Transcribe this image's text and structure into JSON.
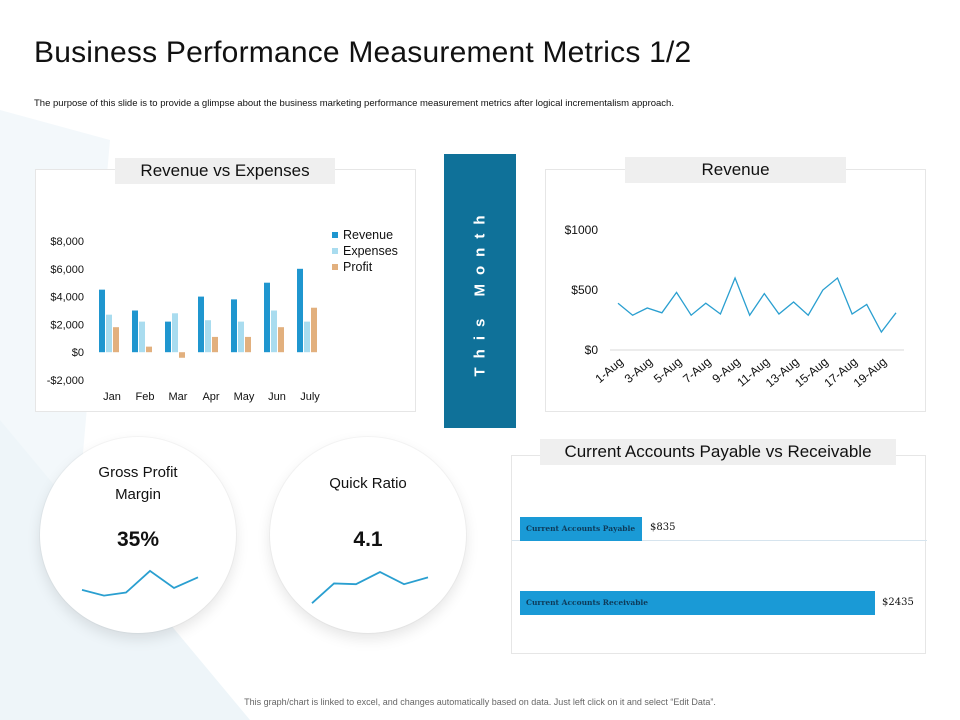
{
  "title": "Business Performance Measurement Metrics 1/2",
  "subtitle": "The purpose of this slide is to provide a glimpse about the business marketing performance measurement metrics after logical incrementalism approach.",
  "footer": "This graph/chart is linked to excel, and changes automatically based on data. Just left click on it and select “Edit Data”.",
  "colors": {
    "accent": "#0f7199",
    "revenue": "#1f96cf",
    "expenses": "#a9dcef",
    "profit": "#e2b07e",
    "line": "#2a9fd0",
    "bar_blue": "#1a9ad6"
  },
  "month_label": "This Month",
  "chart_data": [
    {
      "type": "bar",
      "title": "Revenue vs Expenses",
      "categories": [
        "Jan",
        "Feb",
        "Mar",
        "Apr",
        "May",
        "Jun",
        "July"
      ],
      "series": [
        {
          "name": "Revenue",
          "values": [
            4500,
            3000,
            2200,
            4000,
            3800,
            5000,
            6000
          ]
        },
        {
          "name": "Expenses",
          "values": [
            2700,
            2200,
            2800,
            2300,
            2200,
            3000,
            2200
          ]
        },
        {
          "name": "Profit",
          "values": [
            1800,
            400,
            -400,
            1100,
            1100,
            1800,
            3200
          ]
        }
      ],
      "ylim": [
        -2000,
        8000
      ],
      "yticks": [
        -2000,
        0,
        2000,
        4000,
        6000,
        8000
      ],
      "ytick_labels": [
        "-$2,000",
        "$0",
        "$2,000",
        "$4,000",
        "$6,000",
        "$8,000"
      ],
      "legend": "right",
      "grid": false
    },
    {
      "type": "line",
      "title": "Revenue",
      "x": [
        "1-Aug",
        "2-Aug",
        "3-Aug",
        "4-Aug",
        "5-Aug",
        "6-Aug",
        "7-Aug",
        "8-Aug",
        "9-Aug",
        "10-Aug",
        "11-Aug",
        "12-Aug",
        "13-Aug",
        "14-Aug",
        "15-Aug",
        "16-Aug",
        "17-Aug",
        "18-Aug",
        "19-Aug",
        "20-Aug"
      ],
      "xtick_labels": [
        "1-Aug",
        "3-Aug",
        "5-Aug",
        "7-Aug",
        "9-Aug",
        "11-Aug",
        "13-Aug",
        "15-Aug",
        "17-Aug",
        "19-Aug"
      ],
      "series": [
        {
          "values": [
            390,
            290,
            350,
            310,
            480,
            290,
            390,
            300,
            600,
            290,
            470,
            300,
            400,
            290,
            500,
            600,
            300,
            380,
            150,
            310
          ]
        }
      ],
      "ylim": [
        0,
        1000
      ],
      "yticks": [
        0,
        500,
        1000
      ],
      "ytick_labels": [
        "$0",
        "$500",
        "$1000"
      ],
      "grid": false
    },
    {
      "type": "bar",
      "orientation": "horizontal",
      "title": "Current Accounts Payable vs Receivable",
      "categories": [
        "Current Accounts Payable",
        "Current Accounts Receivable"
      ],
      "values": [
        835,
        2435
      ],
      "value_labels": [
        "$835",
        "$2435"
      ]
    }
  ],
  "kpis": [
    {
      "label_line1": "Gross Profit",
      "label_line2": "Margin",
      "value": "35%",
      "trend": [
        0.45,
        0.3,
        0.38,
        0.95,
        0.5,
        0.78
      ]
    },
    {
      "label_line1": "Quick Ratio",
      "label_line2": "",
      "value": "4.1",
      "trend": [
        0.1,
        0.62,
        0.6,
        0.92,
        0.6,
        0.78
      ]
    }
  ]
}
